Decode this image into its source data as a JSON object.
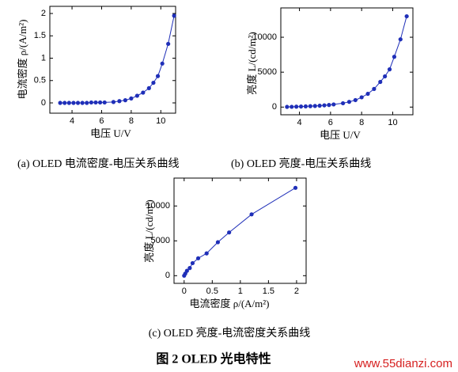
{
  "chart_data": [
    {
      "type": "line",
      "caption": "(a) OLED 电流密度-电压关系曲线",
      "xlabel": "电压 U/V",
      "ylabel": "电流密度 ρ/(A/m²)",
      "color": "#1f2fb8",
      "x": [
        3.2,
        3.5,
        3.8,
        4.1,
        4.4,
        4.7,
        5.0,
        5.3,
        5.6,
        5.9,
        6.2,
        6.8,
        7.2,
        7.6,
        8.0,
        8.4,
        8.8,
        9.2,
        9.5,
        9.8,
        10.1,
        10.5,
        10.9
      ],
      "values": [
        0,
        0,
        0,
        0,
        0,
        0,
        0,
        0.01,
        0.01,
        0.01,
        0.01,
        0.02,
        0.04,
        0.06,
        0.1,
        0.16,
        0.23,
        0.33,
        0.45,
        0.6,
        0.88,
        1.32,
        1.95
      ],
      "xlim": [
        2.5,
        11
      ],
      "xticks": [
        4,
        6,
        8,
        10
      ],
      "ylim": [
        -0.23,
        2.16
      ],
      "yticks": [
        0,
        0.5,
        1,
        1.5,
        2
      ]
    },
    {
      "type": "line",
      "caption": "(b) OLED 亮度-电压关系曲线",
      "xlabel": "电压 U/V",
      "ylabel": "亮度 L/(cd/m²)",
      "color": "#1f2fb8",
      "x": [
        3.2,
        3.5,
        3.8,
        4.1,
        4.4,
        4.7,
        5.0,
        5.3,
        5.6,
        5.9,
        6.2,
        6.8,
        7.2,
        7.6,
        8.0,
        8.4,
        8.8,
        9.2,
        9.5,
        9.8,
        10.1,
        10.5,
        10.9
      ],
      "values": [
        30,
        40,
        60,
        80,
        100,
        130,
        160,
        200,
        250,
        300,
        380,
        550,
        750,
        1000,
        1400,
        1900,
        2600,
        3600,
        4400,
        5400,
        7200,
        9700,
        13000
      ],
      "xlim": [
        2.8,
        11.3
      ],
      "xticks": [
        4,
        6,
        8,
        10
      ],
      "ylim": [
        -1100,
        14200
      ],
      "yticks": [
        0,
        5000,
        10000
      ]
    },
    {
      "type": "line",
      "caption": "(c) OLED 亮度-电流密度关系曲线",
      "xlabel": "电流密度 ρ/(A/m²)",
      "ylabel": "亮度 L/(cd/m²)",
      "color": "#1f2fb8",
      "x": [
        0,
        0.02,
        0.05,
        0.1,
        0.15,
        0.25,
        0.4,
        0.6,
        0.8,
        1.2,
        1.98
      ],
      "values": [
        0,
        300,
        700,
        1100,
        1800,
        2500,
        3200,
        4800,
        6200,
        8800,
        12600
      ],
      "xlim": [
        -0.18,
        2.17
      ],
      "xticks": [
        0,
        0.5,
        1,
        1.5,
        2
      ],
      "ylim": [
        -1100,
        14000
      ],
      "yticks": [
        0,
        5000,
        10000
      ]
    }
  ],
  "figure_title": "图 2 OLED 光电特性",
  "watermark": "www.55dianzi.com"
}
